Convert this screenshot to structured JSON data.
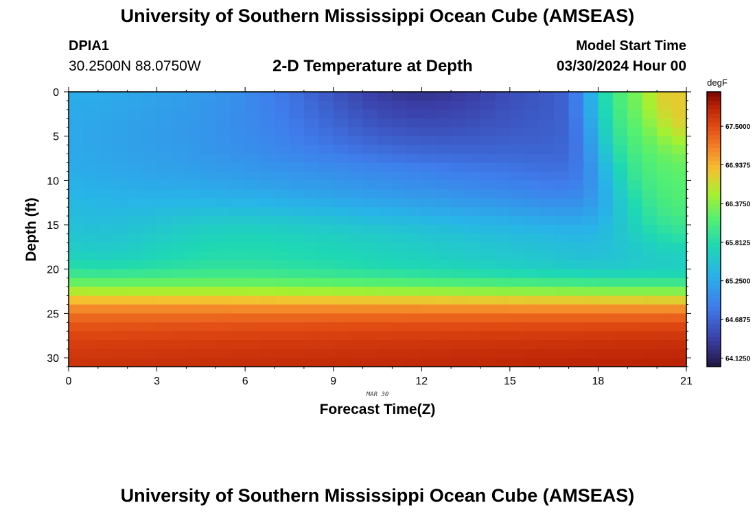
{
  "header": {
    "title": "University of Southern Mississippi Ocean Cube (AMSEAS)",
    "station_name": "DPIA1",
    "station_coords": "30.2500N  88.0750W",
    "plot_title": "2-D Temperature at Depth",
    "start_label": "Model Start Time",
    "start_value": "03/30/2024 Hour 00"
  },
  "footer": {
    "title": "University of Southern Mississippi Ocean Cube (AMSEAS)"
  },
  "chart_data": {
    "type": "heatmap",
    "title": "2-D Temperature at Depth",
    "xlabel": "Forecast Time(Z)",
    "ylabel": "Depth (ft)",
    "x_date_label": "MAR 30",
    "xlim": [
      0,
      21
    ],
    "ylim": [
      0,
      31
    ],
    "x_ticks": [
      0,
      3,
      6,
      9,
      12,
      15,
      18,
      21
    ],
    "y_ticks": [
      0,
      5,
      10,
      15,
      20,
      25,
      30
    ],
    "colorbar": {
      "unit_label": "degF",
      "min": 64.0,
      "max": 68.0,
      "tick_labels": [
        "64.1250",
        "64.6875",
        "65.2500",
        "65.8125",
        "66.3750",
        "66.9375",
        "67.5000"
      ],
      "tick_values": [
        64.125,
        64.6875,
        65.25,
        65.8125,
        66.375,
        66.9375,
        67.5
      ]
    },
    "grid": {
      "n_time": 42,
      "n_depth": 31,
      "time_step_hours": 0.5,
      "depth_step_ft": 1,
      "field": "temperature_degF"
    }
  }
}
